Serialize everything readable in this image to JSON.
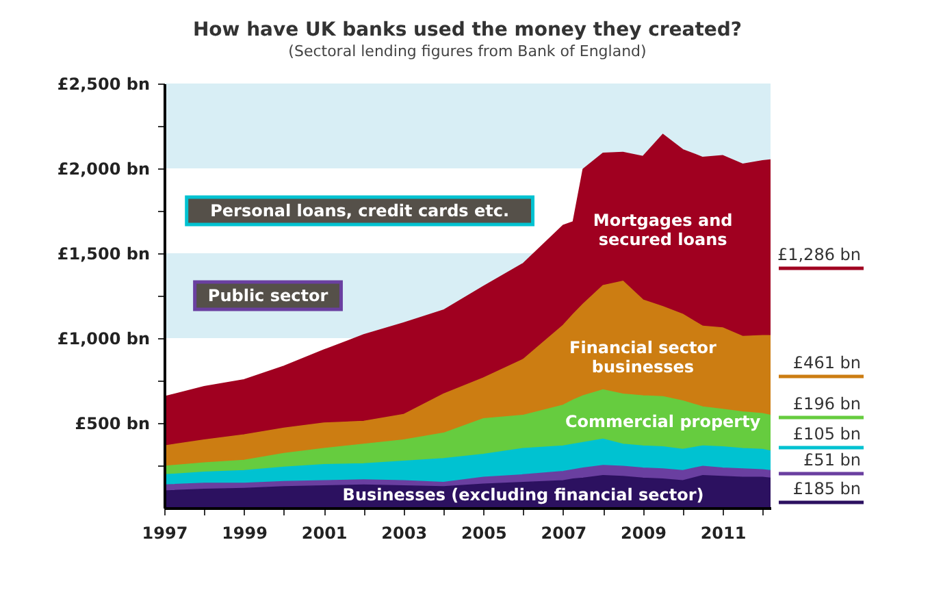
{
  "chart_data": {
    "type": "area",
    "stacked": true,
    "title": "How have UK banks used the money they created?",
    "subtitle": "(Sectoral lending figures from Bank of England)",
    "x": [
      1997,
      1998,
      1999,
      2000,
      2001,
      2002,
      2003,
      2004,
      2005,
      2006,
      2007,
      2007.25,
      2007.5,
      2008,
      2008.5,
      2009,
      2009.5,
      2010,
      2010.5,
      2011,
      2011.5,
      2012,
      2012.2
    ],
    "series": [
      {
        "name": "Businesses (excluding financial sector)",
        "color": "#2c1160",
        "values": [
          100,
          110,
          115,
          125,
          130,
          135,
          130,
          125,
          140,
          150,
          160,
          170,
          175,
          190,
          185,
          175,
          170,
          160,
          190,
          185,
          180,
          180,
          175
        ]
      },
      {
        "name": "Public sector",
        "color": "#6a3fa0",
        "values": [
          35,
          35,
          30,
          30,
          30,
          30,
          30,
          25,
          40,
          45,
          55,
          55,
          60,
          60,
          60,
          60,
          60,
          60,
          55,
          50,
          50,
          45,
          45
        ]
      },
      {
        "name": "Personal loans, credit cards etc.",
        "color": "#00c2d1",
        "values": [
          60,
          65,
          75,
          85,
          95,
          95,
          115,
          140,
          135,
          155,
          150,
          150,
          150,
          155,
          130,
          130,
          130,
          125,
          120,
          125,
          120,
          120,
          115
        ]
      },
      {
        "name": "Commercial property",
        "color": "#66cc3f",
        "values": [
          50,
          55,
          60,
          80,
          95,
          115,
          125,
          150,
          210,
          195,
          240,
          260,
          275,
          290,
          295,
          295,
          295,
          285,
          230,
          220,
          215,
          210,
          210
        ]
      },
      {
        "name": "Financial sector\nbusinesses",
        "color": "#cc7d12",
        "values": [
          120,
          135,
          150,
          150,
          150,
          135,
          150,
          230,
          240,
          330,
          470,
          505,
          540,
          615,
          665,
          565,
          530,
          510,
          475,
          480,
          445,
          460,
          470
        ]
      },
      {
        "name": "Mortgages and\nsecured loans",
        "color": "#a00020",
        "values": [
          290,
          315,
          325,
          365,
          430,
          510,
          540,
          495,
          540,
          565,
          590,
          545,
          795,
          780,
          760,
          845,
          1015,
          970,
          995,
          1015,
          1015,
          1030,
          1035
        ]
      }
    ],
    "xlim": [
      1997,
      2012.2
    ],
    "xticks": [
      1997,
      {
        "value": 1998,
        "label": null
      },
      1999,
      {
        "value": 2000,
        "label": null
      },
      2001,
      {
        "value": 2002,
        "label": null
      },
      2003,
      {
        "value": 2004,
        "label": null
      },
      2005,
      {
        "value": 2006,
        "label": null
      },
      2007,
      {
        "value": 2008,
        "label": null
      },
      2009,
      {
        "value": 2010,
        "label": null
      },
      2011,
      {
        "value": 2012,
        "label": null
      }
    ],
    "ylim": [
      0,
      2500
    ],
    "yticks": [
      {
        "value": 250,
        "label": null
      },
      {
        "value": 500,
        "label": "£500 bn"
      },
      {
        "value": 750,
        "label": null
      },
      {
        "value": 1000,
        "label": "£1,000 bn"
      },
      {
        "value": 1250,
        "label": null
      },
      {
        "value": 1500,
        "label": "£1,500 bn"
      },
      {
        "value": 1750,
        "label": null
      },
      {
        "value": 2000,
        "label": "£2,000 bn"
      },
      {
        "value": 2250,
        "label": null
      },
      {
        "value": 2500,
        "label": "£2,500 bn"
      }
    ],
    "bands": [
      {
        "axis": "y",
        "from": 1000,
        "to": 1500,
        "color": "#d8eef5"
      },
      {
        "axis": "y",
        "from": 2000,
        "to": 2500,
        "color": "#d8eef5"
      }
    ],
    "annotations": [
      "£1,286 bn",
      "£461 bn",
      "£196 bn",
      "£105 bn",
      "£51 bn",
      "£185 bn"
    ],
    "grid": false,
    "legend": false
  }
}
